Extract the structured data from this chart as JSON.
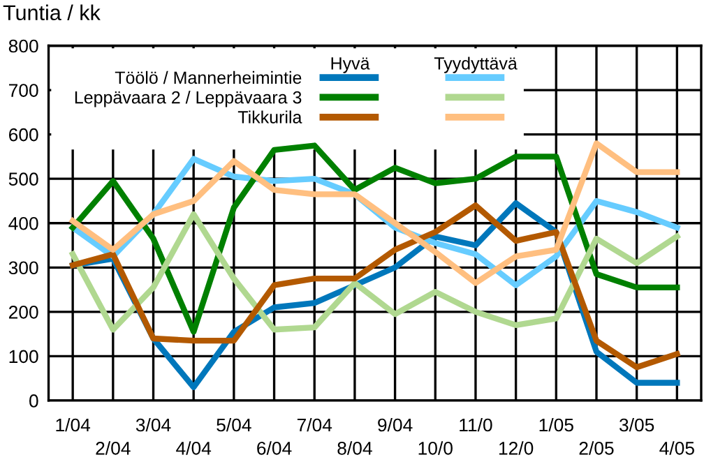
{
  "chart_data": {
    "type": "line",
    "ylabel": "Tuntia / kk",
    "categories": [
      "1/04",
      "2/04",
      "3/04",
      "4/04",
      "5/04",
      "6/04",
      "7/04",
      "8/04",
      "9/04",
      "10/0",
      "11/0",
      "12/0",
      "1/05",
      "2/05",
      "3/05",
      "4/05"
    ],
    "series": [
      {
        "name": "Töölö / Mannerheimintie",
        "color": "#0077bb",
        "values": [
          305,
          320,
          140,
          30,
          155,
          210,
          220,
          260,
          300,
          370,
          350,
          445,
          380,
          110,
          40,
          40
        ]
      },
      {
        "color": "#66ccff",
        "values": [
          390,
          325,
          420,
          545,
          505,
          495,
          500,
          465,
          390,
          355,
          330,
          260,
          325,
          450,
          425,
          390
        ]
      },
      {
        "name": "Leppävaara 2 / Leppävaara 3",
        "color": "#008000",
        "values": [
          390,
          495,
          365,
          155,
          435,
          565,
          575,
          475,
          525,
          490,
          500,
          550,
          550,
          285,
          255,
          255
        ]
      },
      {
        "color": "#b0d890",
        "values": [
          330,
          160,
          255,
          420,
          275,
          160,
          165,
          265,
          195,
          245,
          200,
          170,
          185,
          365,
          310,
          370
        ]
      },
      {
        "name": "Tikkurila",
        "color": "#b35900",
        "values": [
          305,
          330,
          140,
          135,
          135,
          260,
          275,
          275,
          340,
          380,
          440,
          360,
          380,
          135,
          75,
          105
        ]
      },
      {
        "color": "#ffbf80",
        "values": [
          405,
          340,
          420,
          450,
          540,
          475,
          465,
          465,
          400,
          335,
          265,
          325,
          340,
          580,
          515,
          515
        ]
      }
    ],
    "annotations": [
      "Hyvä",
      "Tyydyttävä"
    ],
    "ylim": [
      0,
      800
    ],
    "yticks": [
      0,
      100,
      200,
      300,
      400,
      500,
      600,
      700,
      800
    ],
    "grid": true,
    "legend": "top left",
    "marker": "none",
    "line_style": "solid"
  }
}
